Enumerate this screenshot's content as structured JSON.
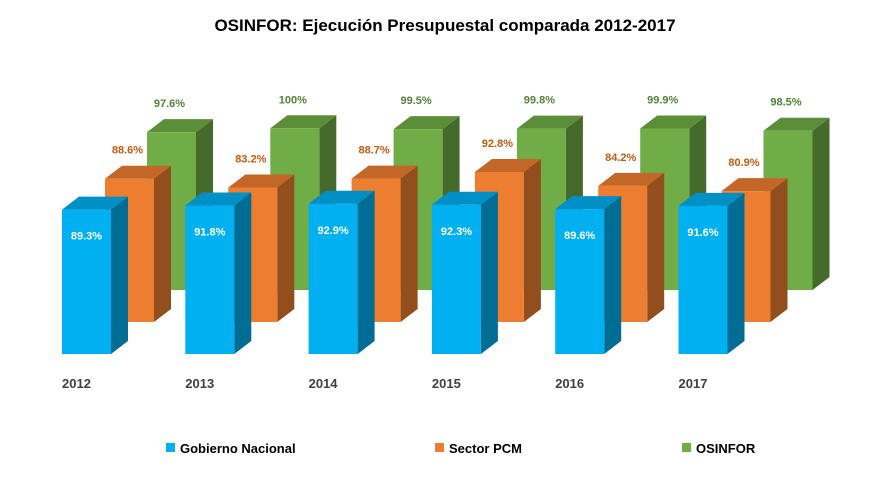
{
  "chart_data": {
    "type": "bar",
    "title": "OSINFOR: Ejecución Presupuestal comparada 2012-2017",
    "categories": [
      "2012",
      "2013",
      "2014",
      "2015",
      "2016",
      "2017"
    ],
    "series": [
      {
        "name": "Gobierno Nacional",
        "values": [
          89.3,
          91.8,
          92.9,
          92.3,
          89.6,
          91.6
        ],
        "labels": [
          "89.3%",
          "91.8%",
          "92.9%",
          "92.3%",
          "89.6%",
          "91.6%"
        ]
      },
      {
        "name": "Sector PCM",
        "values": [
          88.6,
          83.2,
          88.7,
          92.8,
          84.2,
          80.9
        ],
        "labels": [
          "88.6%",
          "83.2%",
          "88.7%",
          "92.8%",
          "84.2%",
          "80.9%"
        ]
      },
      {
        "name": "OSINFOR",
        "values": [
          97.6,
          100,
          99.5,
          99.8,
          99.9,
          98.5
        ],
        "labels": [
          "97.6%",
          "100%",
          "99.5%",
          "99.8%",
          "99.9%",
          "98.5%"
        ]
      }
    ],
    "colors": {
      "Gobierno Nacional": "#00b0f0",
      "Sector PCM": "#ed7d31",
      "OSINFOR": "#70ad47"
    },
    "legend_position": "bottom",
    "grid": false,
    "chart_style": "3d-clustered-column"
  }
}
